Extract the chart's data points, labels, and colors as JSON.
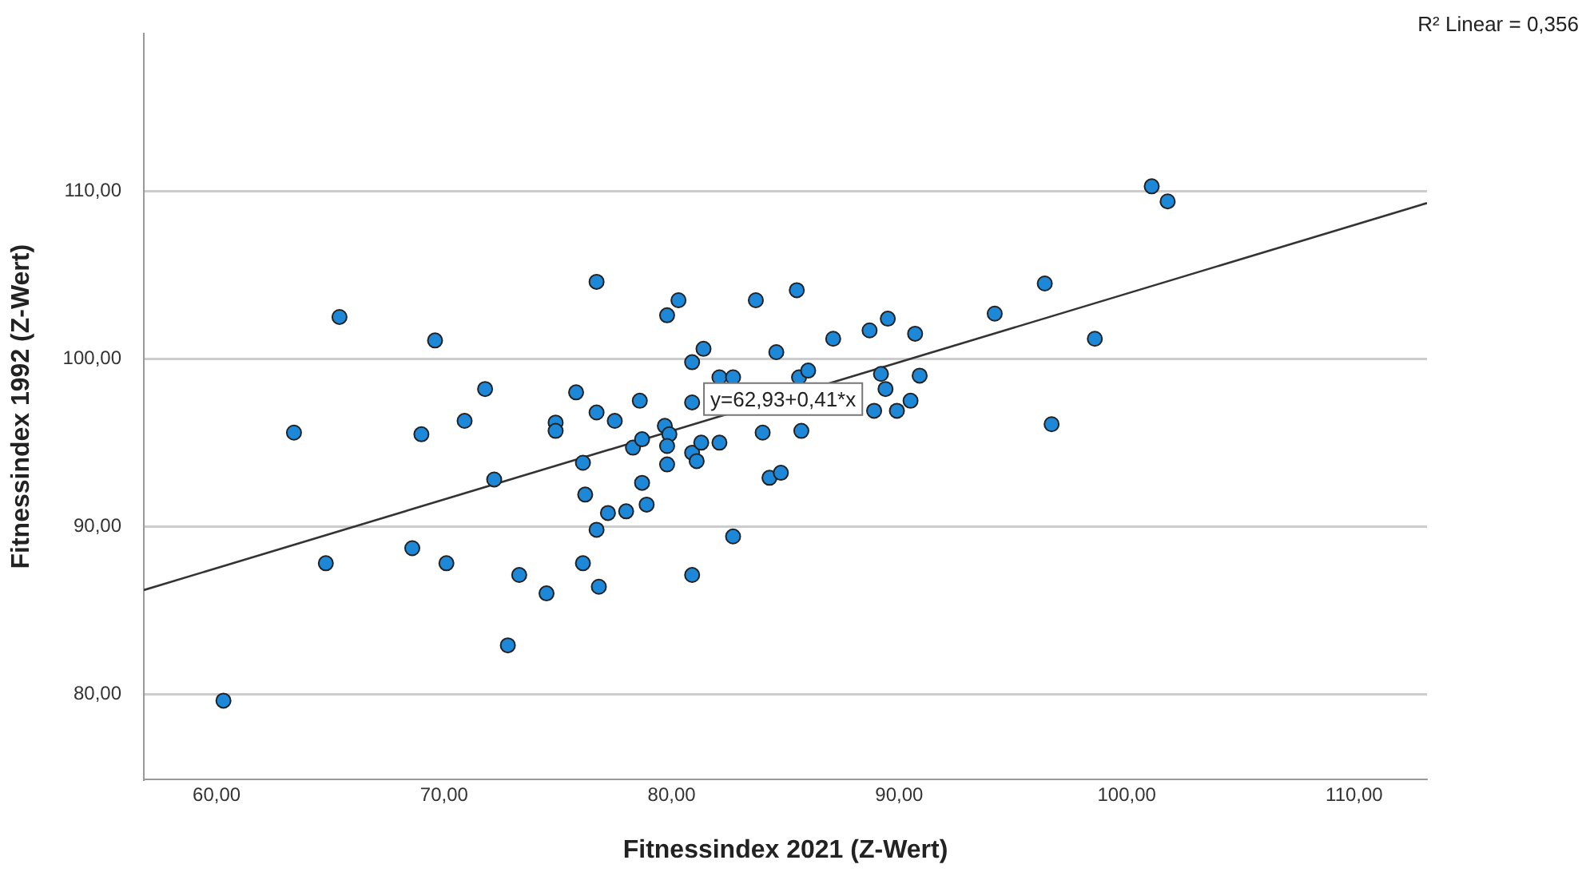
{
  "chart_data": {
    "type": "scatter",
    "xlabel": "Fitnessindex 2021 (Z-Wert)",
    "ylabel": "Fitnessindex 1992 (Z-Wert)",
    "xlim": [
      56.8,
      113.2
    ],
    "ylim": [
      74.9,
      119.4
    ],
    "xticks": [
      {
        "value": 60,
        "label": "60,00"
      },
      {
        "value": 70,
        "label": "70,00"
      },
      {
        "value": 80,
        "label": "80,00"
      },
      {
        "value": 90,
        "label": "90,00"
      },
      {
        "value": 100,
        "label": "100,00"
      },
      {
        "value": 110,
        "label": "110,00"
      }
    ],
    "yticks": [
      {
        "value": 80,
        "label": "80,00"
      },
      {
        "value": 90,
        "label": "90,00"
      },
      {
        "value": 100,
        "label": "100,00"
      },
      {
        "value": 110,
        "label": "110,00"
      }
    ],
    "grid": "y",
    "legend": false,
    "marker": "circle",
    "series": [
      {
        "type": "scatter",
        "color": "#1e88d8",
        "x": [
          60.3,
          63.4,
          65.4,
          64.8,
          69.6,
          69.0,
          68.6,
          70.1,
          70.9,
          71.8,
          72.2,
          73.3,
          72.8,
          74.5,
          75.8,
          76.7,
          74.9,
          74.9,
          76.7,
          77.5,
          76.1,
          76.2,
          77.2,
          76.7,
          76.1,
          76.8,
          78.0,
          78.9,
          78.7,
          78.3,
          78.7,
          78.6,
          79.7,
          79.9,
          79.8,
          79.8,
          79.8,
          80.3,
          80.9,
          81.4,
          80.9,
          82.1,
          82.7,
          80.9,
          81.1,
          81.3,
          82.1,
          82.7,
          80.9,
          83.7,
          85.5,
          84.6,
          84.0,
          84.3,
          84.8,
          85.7,
          85.6,
          86.0,
          87.1,
          88.7,
          89.5,
          90.7,
          89.2,
          89.4,
          88.9,
          89.9,
          90.5,
          90.9,
          94.2,
          101.1,
          101.8,
          96.4,
          98.6,
          96.7
        ],
        "values": [
          79.6,
          95.6,
          102.5,
          87.8,
          101.1,
          95.5,
          88.7,
          87.8,
          96.3,
          98.2,
          92.8,
          87.1,
          82.9,
          86.0,
          98.0,
          104.6,
          96.2,
          95.7,
          96.8,
          96.3,
          93.8,
          91.9,
          90.8,
          89.8,
          87.8,
          86.4,
          90.9,
          91.3,
          92.6,
          94.7,
          95.2,
          97.5,
          96.0,
          95.5,
          94.8,
          93.7,
          102.6,
          103.5,
          99.8,
          100.6,
          97.4,
          98.9,
          98.9,
          94.4,
          93.9,
          95.0,
          95.0,
          89.4,
          87.1,
          103.5,
          104.1,
          100.4,
          95.6,
          92.9,
          93.2,
          95.7,
          98.9,
          99.3,
          101.2,
          101.7,
          102.4,
          101.5,
          99.1,
          98.2,
          96.9,
          96.9,
          97.5,
          99.0,
          102.7,
          110.3,
          109.4,
          104.5,
          101.2,
          96.1
        ]
      },
      {
        "type": "line",
        "color": "#333333",
        "x": [
          56.8,
          113.2
        ],
        "values": [
          86.2,
          109.3
        ],
        "marker": "none",
        "line_style": "solid"
      }
    ],
    "annotations": [
      {
        "text": "y=62,93+0,41*x",
        "x": 84.9,
        "y": 97.6
      },
      "R² Linear = 0,356"
    ]
  }
}
